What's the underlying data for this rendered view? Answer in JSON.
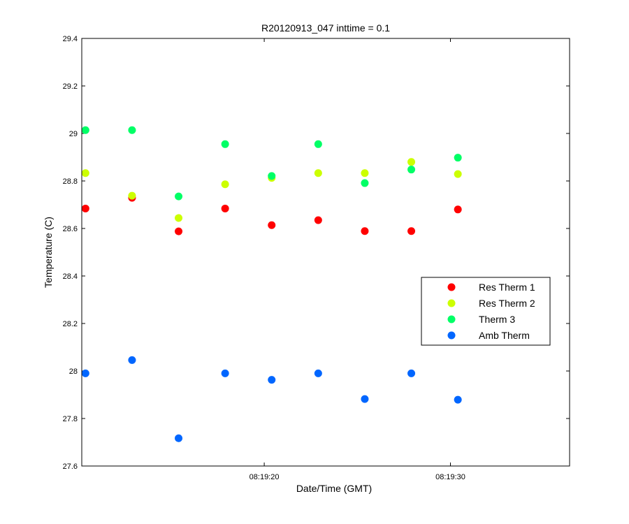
{
  "chart_data": {
    "type": "scatter",
    "title": "R20120913_047 inttime = 0.1",
    "xlabel": "Date/Time (GMT)",
    "ylabel": "Temperature (C)",
    "x_unit": "time",
    "xlim": [
      "08:19:10.2",
      "08:19:36.4"
    ],
    "ylim": [
      27.6,
      29.4
    ],
    "yticks": [
      27.6,
      27.8,
      28,
      28.2,
      28.4,
      28.6,
      28.8,
      29,
      29.2,
      29.4
    ],
    "ytick_labels": [
      "27.6",
      "27.8",
      "28",
      "28.2",
      "28.4",
      "28.6",
      "28.8",
      "29",
      "29.2",
      "29.4"
    ],
    "xticks": [
      "08:19:20",
      "08:19:30"
    ],
    "xtick_labels": [
      "08:19:20",
      "08:19:30"
    ],
    "grid": false,
    "legend_position": "right",
    "x": [
      "08:19:10.4",
      "08:19:12.9",
      "08:19:15.4",
      "08:19:17.9",
      "08:19:20.4",
      "08:19:22.9",
      "08:19:25.4",
      "08:19:27.9",
      "08:19:30.4"
    ],
    "series": [
      {
        "name": "Res Therm 1",
        "color": "#ff0000",
        "values": [
          28.684,
          28.729,
          28.588,
          28.684,
          28.614,
          28.635,
          28.589,
          28.589,
          28.68
        ]
      },
      {
        "name": "Res Therm 2",
        "color": "#ccff00",
        "values": [
          28.833,
          28.738,
          28.644,
          28.786,
          28.813,
          28.833,
          28.833,
          28.88,
          28.829
        ]
      },
      {
        "name": "Therm 3",
        "color": "#00ff66",
        "values": [
          29.014,
          29.014,
          28.735,
          28.955,
          28.821,
          28.955,
          28.791,
          28.848,
          28.898
        ]
      },
      {
        "name": "Amb Therm",
        "color": "#0066ff",
        "values": [
          27.99,
          28.046,
          27.717,
          27.99,
          27.963,
          27.99,
          27.882,
          27.99,
          27.879
        ]
      }
    ]
  }
}
